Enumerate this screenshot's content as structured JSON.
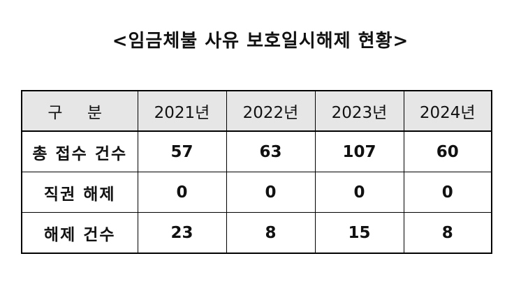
{
  "title": "<임금체불 사유 보호일시해제 현황>",
  "table": {
    "header": {
      "corner": "구 분",
      "years": [
        "2021년",
        "2022년",
        "2023년",
        "2024년"
      ]
    },
    "rows": [
      {
        "label": "총 접수 건수",
        "values": [
          "57",
          "63",
          "107",
          "60"
        ]
      },
      {
        "label": "직권 해제",
        "values": [
          "0",
          "0",
          "0",
          "0"
        ]
      },
      {
        "label": "해제 건수",
        "values": [
          "23",
          "8",
          "15",
          "8"
        ]
      }
    ]
  }
}
